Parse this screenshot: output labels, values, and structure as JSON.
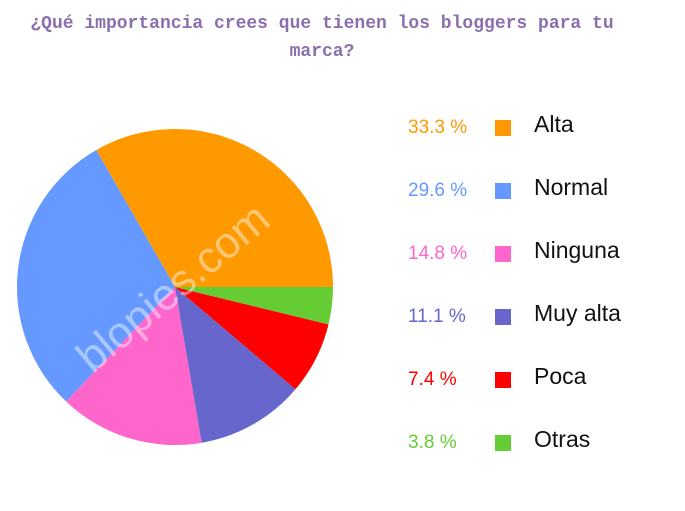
{
  "chart_data": {
    "type": "pie",
    "title": "¿Qué importancia crees que tienen los bloggers para tu marca?",
    "watermark": "blopies.com",
    "categories": [
      "Alta",
      "Normal",
      "Ninguna",
      "Muy alta",
      "Poca",
      "Otras"
    ],
    "values": [
      33.3,
      29.6,
      14.8,
      11.1,
      7.4,
      3.8
    ],
    "value_labels": [
      "33.3 %",
      "29.6 %",
      "14.8 %",
      "11.1 %",
      "7.4 %",
      "3.8 %"
    ],
    "colors": [
      "#ff9900",
      "#6699ff",
      "#ff66cc",
      "#6666cc",
      "#ff0000",
      "#66cc33"
    ]
  }
}
